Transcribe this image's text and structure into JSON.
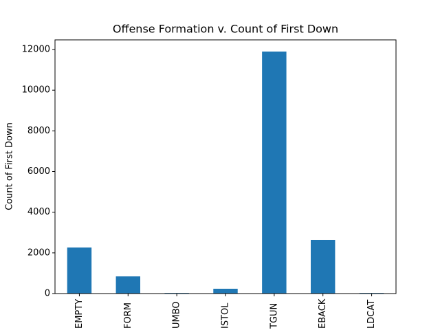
{
  "chart_data": {
    "type": "bar",
    "title": "Offense Formation v. Count of First Down",
    "y_label": "Count of First Down",
    "categories": [
      "EMPTY",
      "FORM",
      "UMBO",
      "ISTOL",
      "TGUN",
      "EBACK",
      "LDCAT"
    ],
    "values": [
      2265,
      845,
      30,
      237,
      11900,
      2637,
      30
    ],
    "color": "#1f77b4",
    "ylim": [
      0,
      12474
    ],
    "yticks": [
      0,
      2000,
      4000,
      6000,
      8000,
      10000,
      12000
    ]
  }
}
